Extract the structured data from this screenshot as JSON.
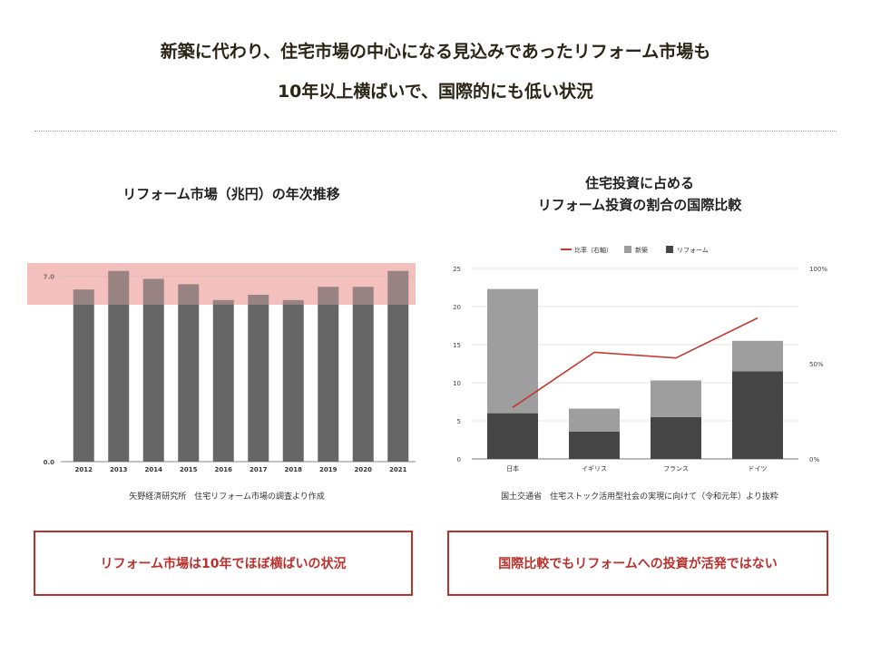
{
  "headline": {
    "line1": "新築に代わり、住宅市場の中心になる見込みであったリフォーム市場も",
    "line2": "10年以上横ばいで、国際的にも低い状況"
  },
  "left": {
    "title": "リフォーム市場（兆円）の年次推移",
    "source": "矢野経済研究所　住宅リフォーム市場の調査より作成",
    "callout": "リフォーム市場は10年でほぼ横ばいの状況"
  },
  "right": {
    "title_line1": "住宅投資に占める",
    "title_line2": "リフォーム投資の割合の国際比較",
    "source": "国土交通省　住宅ストック活用型社会の実現に向けて（令和元年）より抜粋",
    "callout": "国際比較でもリフォームへの投資が活発ではない"
  },
  "chart_data": [
    {
      "type": "bar",
      "title": "リフォーム市場（兆円）の年次推移",
      "categories": [
        "2012",
        "2013",
        "2014",
        "2015",
        "2016",
        "2017",
        "2018",
        "2019",
        "2020",
        "2021"
      ],
      "values": [
        6.5,
        7.2,
        6.9,
        6.7,
        6.1,
        6.3,
        6.1,
        6.6,
        6.6,
        7.2
      ],
      "yticks": [
        "0.0",
        "7.0"
      ],
      "ylim": [
        0,
        7.5
      ],
      "highlight_band_color": "#f3b9b7",
      "bar_color": "#666666"
    },
    {
      "type": "bar",
      "stacked": true,
      "categories": [
        "日本",
        "イギリス",
        "フランス",
        "ドイツ"
      ],
      "series": [
        {
          "name": "リフォーム",
          "values": [
            6,
            3.6,
            5.5,
            11.5
          ],
          "color": "#454545"
        },
        {
          "name": "新築",
          "values": [
            16.3,
            3,
            4.8,
            4
          ],
          "color": "#9e9e9e"
        }
      ],
      "line_series": {
        "name": "比率（右軸）",
        "values": [
          27,
          56,
          53,
          74
        ],
        "color": "#c23b35"
      },
      "ylim": [
        0,
        25
      ],
      "yticks": [
        0,
        5,
        10,
        15,
        20,
        25
      ],
      "y2lim": [
        0,
        100
      ],
      "y2ticks": [
        "0%",
        "50%",
        "100%"
      ],
      "legend": "top"
    }
  ]
}
